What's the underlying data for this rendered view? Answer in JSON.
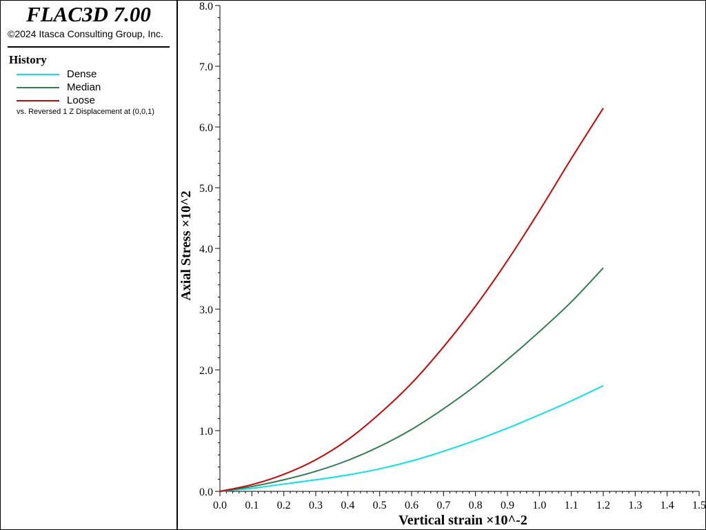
{
  "app": {
    "title": "FLAC3D 7.00",
    "copyright": "©2024 Itasca Consulting Group, Inc."
  },
  "legend": {
    "heading": "History",
    "note": "vs. Reversed 1 Z Displacement at (0,0,1)"
  },
  "chart_data": {
    "type": "line",
    "xlabel": "Vertical strain ×10^-2",
    "ylabel": "Axial Stress ×10^2",
    "xlim": [
      0.0,
      1.5
    ],
    "ylim": [
      0.0,
      8.0
    ],
    "x_ticks": [
      "0.0",
      "0.1",
      "0.2",
      "0.3",
      "0.4",
      "0.5",
      "0.6",
      "0.7",
      "0.8",
      "0.9",
      "1.0",
      "1.1",
      "1.2",
      "1.3",
      "1.4",
      "1.5"
    ],
    "y_ticks": [
      "0.0",
      "1.0",
      "2.0",
      "3.0",
      "4.0",
      "5.0",
      "6.0",
      "7.0",
      "8.0"
    ],
    "grid": false,
    "legend_position": "left-panel",
    "x": [
      0.0,
      0.1,
      0.2,
      0.3,
      0.4,
      0.5,
      0.6,
      0.7,
      0.8,
      0.9,
      1.0,
      1.1,
      1.2
    ],
    "series": [
      {
        "name": "Dense",
        "color": "#00e5ee",
        "values": [
          0.0,
          0.05,
          0.12,
          0.19,
          0.27,
          0.37,
          0.5,
          0.66,
          0.84,
          1.04,
          1.26,
          1.49,
          1.74
        ]
      },
      {
        "name": "Median",
        "color": "#2e7d4f",
        "values": [
          0.0,
          0.08,
          0.19,
          0.33,
          0.51,
          0.74,
          1.02,
          1.36,
          1.74,
          2.17,
          2.63,
          3.12,
          3.68
        ]
      },
      {
        "name": "Loose",
        "color": "#d40000",
        "values": [
          0.0,
          0.11,
          0.28,
          0.52,
          0.85,
          1.28,
          1.78,
          2.38,
          3.05,
          3.8,
          4.62,
          5.48,
          6.31
        ]
      }
    ]
  }
}
